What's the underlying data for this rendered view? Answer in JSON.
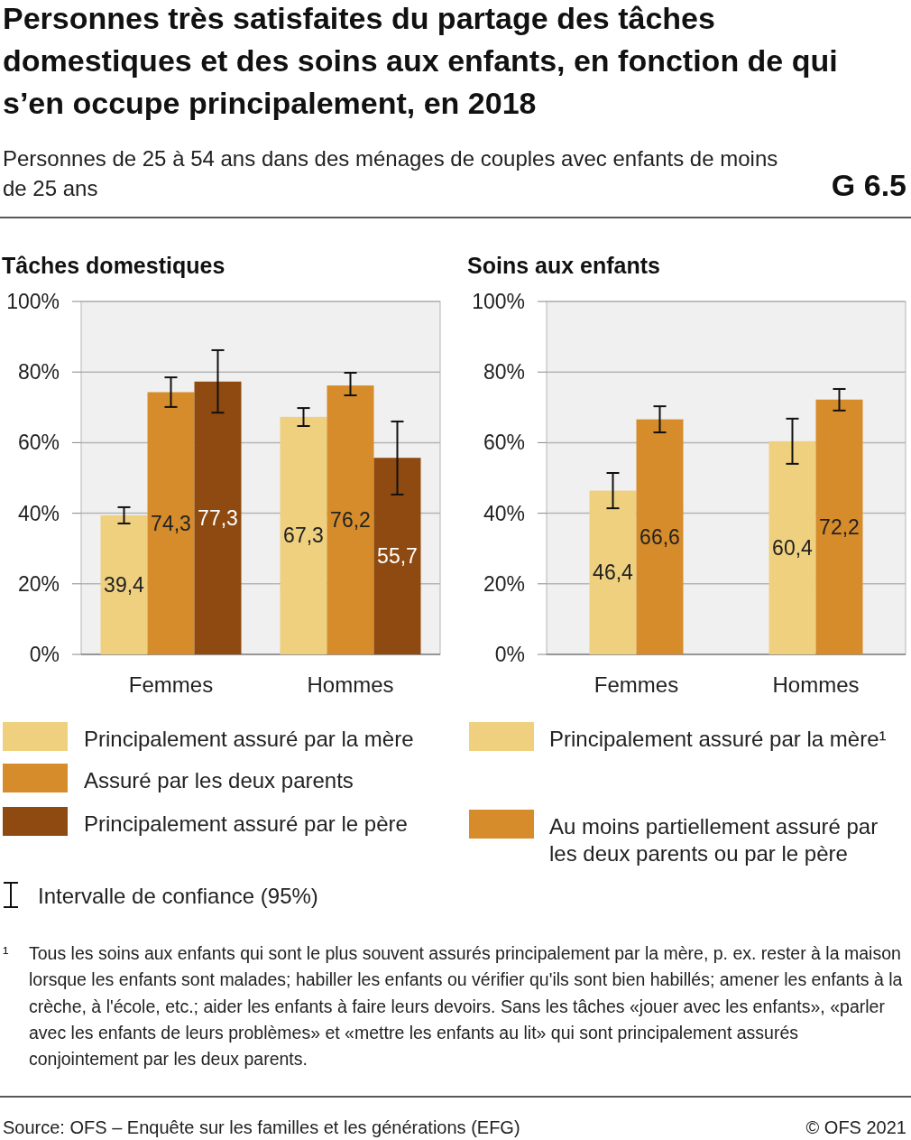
{
  "chart_data": [
    {
      "type": "bar",
      "title": "Tâches domestiques",
      "categories": [
        "Femmes",
        "Hommes"
      ],
      "ylim": [
        0,
        100
      ],
      "yticks": [
        {
          "value": 0,
          "label": "0%"
        },
        {
          "value": 20,
          "label": "20%"
        },
        {
          "value": 40,
          "label": "40%"
        },
        {
          "value": 60,
          "label": "60%"
        },
        {
          "value": 80,
          "label": "80%"
        },
        {
          "value": 100,
          "label": "100%"
        }
      ],
      "grid": "y",
      "legend": "bottom",
      "series": [
        {
          "name": "Principalement assuré par la mère",
          "color": "#eed07e",
          "values": [
            39.4,
            67.3
          ],
          "value_labels": [
            "39,4",
            "67,3"
          ],
          "errors": [
            [
              37.1,
              41.7
            ],
            [
              64.7,
              69.8
            ]
          ]
        },
        {
          "name": "Assuré par les deux parents",
          "color": "#d68c2a",
          "values": [
            74.3,
            76.2
          ],
          "value_labels": [
            "74,3",
            "76,2"
          ],
          "errors": [
            [
              70.1,
              78.5
            ],
            [
              73.4,
              79.8
            ]
          ]
        },
        {
          "name": "Principalement assuré par le père",
          "color": "#8e4a10",
          "values": [
            77.3,
            55.7
          ],
          "value_labels": [
            "77,3",
            "55,7"
          ],
          "errors": [
            [
              68.5,
              86.2
            ],
            [
              45.3,
              66.0
            ]
          ]
        }
      ],
      "annotations": [
        "Personnes très satisfaites du partage des tâches domestiques et des soins aux enfants, en fonction de qui s’en occupe principalement, en 2018",
        "Personnes de 25 à 54 ans dans des ménages de couples avec enfants de moins de 25 ans",
        "G 6.5",
        "Intervalle de confiance (95%)",
        "¹ Tous les soins aux enfants qui sont le plus souvent assurés principalement par la mère, p. ex. rester à la maison lorsque les enfants sont malades; habiller les enfants ou vérifier qu'ils sont bien habillés; amener les enfants à la crèche, à l'école, etc.; aider les enfants à faire leurs devoirs. Sans les tâches «jouer avec les enfants», «parler avec les enfants de leurs problèmes» et «mettre les enfants au lit» qui sont principalement assurés conjointement par les deux parents.",
        "Source: OFS – Enquête sur les familles et les générations (EFG)",
        "© OFS 2021"
      ]
    },
    {
      "type": "bar",
      "title": "Soins aux enfants",
      "categories": [
        "Femmes",
        "Hommes"
      ],
      "ylim": [
        0,
        100
      ],
      "yticks": [
        {
          "value": 0,
          "label": "0%"
        },
        {
          "value": 20,
          "label": "20%"
        },
        {
          "value": 40,
          "label": "40%"
        },
        {
          "value": 60,
          "label": "60%"
        },
        {
          "value": 80,
          "label": "80%"
        },
        {
          "value": 100,
          "label": "100%"
        }
      ],
      "grid": "y",
      "legend": "bottom",
      "series": [
        {
          "name": "Principalement assuré par la mère¹",
          "color": "#eed07e",
          "values": [
            46.4,
            60.4
          ],
          "value_labels": [
            "46,4",
            "60,4"
          ],
          "errors": [
            [
              41.4,
              51.4
            ],
            [
              54.0,
              66.8
            ]
          ]
        },
        {
          "name": "Au moins partiellement assuré par les deux parents ou par le père",
          "color": "#d68c2a",
          "values": [
            66.6,
            72.2
          ],
          "value_labels": [
            "66,6",
            "72,2"
          ],
          "errors": [
            [
              62.9,
              70.3
            ],
            [
              69.1,
              75.2
            ]
          ]
        }
      ]
    }
  ]
}
